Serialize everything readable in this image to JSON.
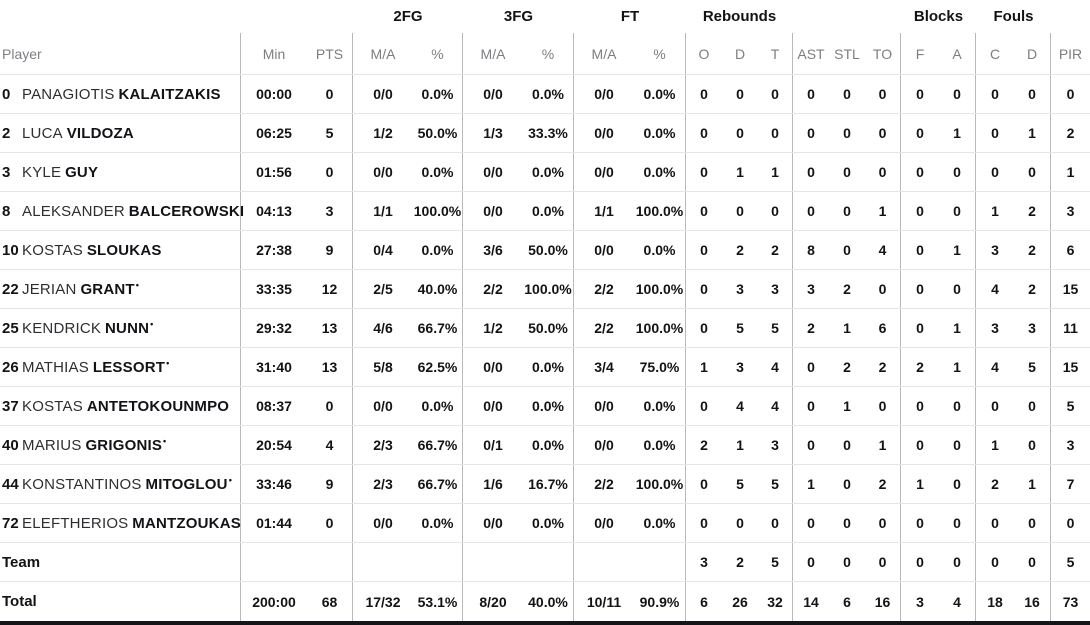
{
  "table": {
    "starter_mark": "•",
    "groups": {
      "fg2": "2FG",
      "fg3": "3FG",
      "ft": "FT",
      "rebounds": "Rebounds",
      "blocks": "Blocks",
      "fouls": "Fouls"
    },
    "header_cells": [
      "Player",
      "Min",
      "PTS",
      "M/A",
      "%",
      "M/A",
      "%",
      "M/A",
      "%",
      "O",
      "D",
      "T",
      "AST",
      "STL",
      "TO",
      "F",
      "A",
      "C",
      "D",
      "PIR"
    ],
    "players": [
      {
        "num": "0",
        "first": "PANAGIOTIS",
        "last": "KALAITZAKIS",
        "starter": false,
        "min": "00:00",
        "pts": "0",
        "fg2ma": "0/0",
        "fg2pct": "0.0%",
        "fg3ma": "0/0",
        "fg3pct": "0.0%",
        "ftma": "0/0",
        "ftpct": "0.0%",
        "ro": "0",
        "rd": "0",
        "rt": "0",
        "ast": "0",
        "stl": "0",
        "to": "0",
        "bf": "0",
        "ba": "0",
        "fc": "0",
        "fd": "0",
        "pir": "0"
      },
      {
        "num": "2",
        "first": "LUCA",
        "last": "VILDOZA",
        "starter": false,
        "min": "06:25",
        "pts": "5",
        "fg2ma": "1/2",
        "fg2pct": "50.0%",
        "fg3ma": "1/3",
        "fg3pct": "33.3%",
        "ftma": "0/0",
        "ftpct": "0.0%",
        "ro": "0",
        "rd": "0",
        "rt": "0",
        "ast": "0",
        "stl": "0",
        "to": "0",
        "bf": "0",
        "ba": "1",
        "fc": "0",
        "fd": "1",
        "pir": "2"
      },
      {
        "num": "3",
        "first": "KYLE",
        "last": "GUY",
        "starter": false,
        "min": "01:56",
        "pts": "0",
        "fg2ma": "0/0",
        "fg2pct": "0.0%",
        "fg3ma": "0/0",
        "fg3pct": "0.0%",
        "ftma": "0/0",
        "ftpct": "0.0%",
        "ro": "0",
        "rd": "1",
        "rt": "1",
        "ast": "0",
        "stl": "0",
        "to": "0",
        "bf": "0",
        "ba": "0",
        "fc": "0",
        "fd": "0",
        "pir": "1"
      },
      {
        "num": "8",
        "first": "ALEKSANDER",
        "last": "BALCEROWSKI",
        "starter": false,
        "min": "04:13",
        "pts": "3",
        "fg2ma": "1/1",
        "fg2pct": "100.0%",
        "fg3ma": "0/0",
        "fg3pct": "0.0%",
        "ftma": "1/1",
        "ftpct": "100.0%",
        "ro": "0",
        "rd": "0",
        "rt": "0",
        "ast": "0",
        "stl": "0",
        "to": "1",
        "bf": "0",
        "ba": "0",
        "fc": "1",
        "fd": "2",
        "pir": "3"
      },
      {
        "num": "10",
        "first": "KOSTAS",
        "last": "SLOUKAS",
        "starter": false,
        "min": "27:38",
        "pts": "9",
        "fg2ma": "0/4",
        "fg2pct": "0.0%",
        "fg3ma": "3/6",
        "fg3pct": "50.0%",
        "ftma": "0/0",
        "ftpct": "0.0%",
        "ro": "0",
        "rd": "2",
        "rt": "2",
        "ast": "8",
        "stl": "0",
        "to": "4",
        "bf": "0",
        "ba": "1",
        "fc": "3",
        "fd": "2",
        "pir": "6"
      },
      {
        "num": "22",
        "first": "JERIAN",
        "last": "GRANT",
        "starter": true,
        "min": "33:35",
        "pts": "12",
        "fg2ma": "2/5",
        "fg2pct": "40.0%",
        "fg3ma": "2/2",
        "fg3pct": "100.0%",
        "ftma": "2/2",
        "ftpct": "100.0%",
        "ro": "0",
        "rd": "3",
        "rt": "3",
        "ast": "3",
        "stl": "2",
        "to": "0",
        "bf": "0",
        "ba": "0",
        "fc": "4",
        "fd": "2",
        "pir": "15"
      },
      {
        "num": "25",
        "first": "KENDRICK",
        "last": "NUNN",
        "starter": true,
        "min": "29:32",
        "pts": "13",
        "fg2ma": "4/6",
        "fg2pct": "66.7%",
        "fg3ma": "1/2",
        "fg3pct": "50.0%",
        "ftma": "2/2",
        "ftpct": "100.0%",
        "ro": "0",
        "rd": "5",
        "rt": "5",
        "ast": "2",
        "stl": "1",
        "to": "6",
        "bf": "0",
        "ba": "1",
        "fc": "3",
        "fd": "3",
        "pir": "11"
      },
      {
        "num": "26",
        "first": "MATHIAS",
        "last": "LESSORT",
        "starter": true,
        "min": "31:40",
        "pts": "13",
        "fg2ma": "5/8",
        "fg2pct": "62.5%",
        "fg3ma": "0/0",
        "fg3pct": "0.0%",
        "ftma": "3/4",
        "ftpct": "75.0%",
        "ro": "1",
        "rd": "3",
        "rt": "4",
        "ast": "0",
        "stl": "2",
        "to": "2",
        "bf": "2",
        "ba": "1",
        "fc": "4",
        "fd": "5",
        "pir": "15"
      },
      {
        "num": "37",
        "first": "KOSTAS",
        "last": "ANTETOKOUNMPO",
        "starter": false,
        "min": "08:37",
        "pts": "0",
        "fg2ma": "0/0",
        "fg2pct": "0.0%",
        "fg3ma": "0/0",
        "fg3pct": "0.0%",
        "ftma": "0/0",
        "ftpct": "0.0%",
        "ro": "0",
        "rd": "4",
        "rt": "4",
        "ast": "0",
        "stl": "1",
        "to": "0",
        "bf": "0",
        "ba": "0",
        "fc": "0",
        "fd": "0",
        "pir": "5"
      },
      {
        "num": "40",
        "first": "MARIUS",
        "last": "GRIGONIS",
        "starter": true,
        "min": "20:54",
        "pts": "4",
        "fg2ma": "2/3",
        "fg2pct": "66.7%",
        "fg3ma": "0/1",
        "fg3pct": "0.0%",
        "ftma": "0/0",
        "ftpct": "0.0%",
        "ro": "2",
        "rd": "1",
        "rt": "3",
        "ast": "0",
        "stl": "0",
        "to": "1",
        "bf": "0",
        "ba": "0",
        "fc": "1",
        "fd": "0",
        "pir": "3"
      },
      {
        "num": "44",
        "first": "KONSTANTINOS",
        "last": "MITOGLOU",
        "starter": true,
        "min": "33:46",
        "pts": "9",
        "fg2ma": "2/3",
        "fg2pct": "66.7%",
        "fg3ma": "1/6",
        "fg3pct": "16.7%",
        "ftma": "2/2",
        "ftpct": "100.0%",
        "ro": "0",
        "rd": "5",
        "rt": "5",
        "ast": "1",
        "stl": "0",
        "to": "2",
        "bf": "1",
        "ba": "0",
        "fc": "2",
        "fd": "1",
        "pir": "7"
      },
      {
        "num": "72",
        "first": "ELEFTHERIOS",
        "last": "MANTZOUKAS",
        "starter": false,
        "min": "01:44",
        "pts": "0",
        "fg2ma": "0/0",
        "fg2pct": "0.0%",
        "fg3ma": "0/0",
        "fg3pct": "0.0%",
        "ftma": "0/0",
        "ftpct": "0.0%",
        "ro": "0",
        "rd": "0",
        "rt": "0",
        "ast": "0",
        "stl": "0",
        "to": "0",
        "bf": "0",
        "ba": "0",
        "fc": "0",
        "fd": "0",
        "pir": "0"
      }
    ],
    "team": {
      "label": "Team",
      "min": "",
      "pts": "",
      "fg2ma": "",
      "fg2pct": "",
      "fg3ma": "",
      "fg3pct": "",
      "ftma": "",
      "ftpct": "",
      "ro": "3",
      "rd": "2",
      "rt": "5",
      "ast": "0",
      "stl": "0",
      "to": "0",
      "bf": "0",
      "ba": "0",
      "fc": "0",
      "fd": "0",
      "pir": "5"
    },
    "total": {
      "label": "Total",
      "min": "200:00",
      "pts": "68",
      "fg2ma": "17/32",
      "fg2pct": "53.1%",
      "fg3ma": "8/20",
      "fg3pct": "40.0%",
      "ftma": "10/11",
      "ftpct": "90.9%",
      "ro": "6",
      "rd": "26",
      "rt": "32",
      "ast": "14",
      "stl": "6",
      "to": "16",
      "bf": "3",
      "ba": "4",
      "fc": "18",
      "fd": "16",
      "pir": "73"
    }
  }
}
